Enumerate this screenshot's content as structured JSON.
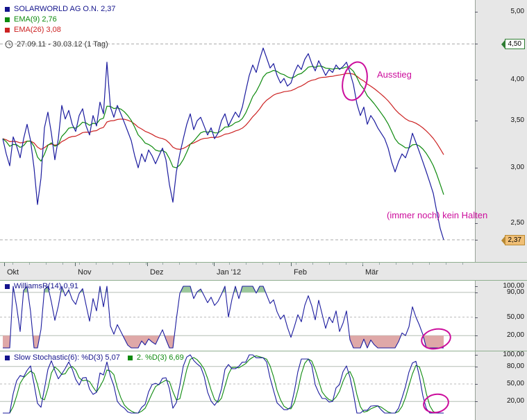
{
  "legend": {
    "symbol": "SOLARWORLD AG O.N. 2,37",
    "ema9": "EMA(9) 2,76",
    "ema26": "EMA(26) 3,08",
    "date_range": "27.09.11 - 30.03.12 (1 Tag)"
  },
  "annotations": {
    "ausstieg": "Ausstieg",
    "kein_halten": "(immer noch) kein Halten"
  },
  "x_axis": {
    "months": [
      "Okt",
      "Nov",
      "Dez",
      "Jan '12",
      "Feb",
      "Mär"
    ]
  },
  "price_axis": {
    "ticks": [
      {
        "label": "5,00",
        "value": 5.0,
        "style": "plain"
      },
      {
        "label": "4,50",
        "value": 4.5,
        "style": "badge-green"
      },
      {
        "label": "4,00",
        "value": 4.0,
        "style": "plain"
      },
      {
        "label": "3,50",
        "value": 3.5,
        "style": "plain"
      },
      {
        "label": "3,00",
        "value": 3.0,
        "style": "plain"
      },
      {
        "label": "2,50",
        "value": 2.5,
        "style": "plain"
      },
      {
        "label": "2,37",
        "value": 2.37,
        "style": "badge-amber"
      }
    ]
  },
  "williams_panel": {
    "title": "WilliamsR(14) 0,91",
    "ticks": [
      {
        "label": "100,00",
        "value": 100
      },
      {
        "label": "90,00",
        "value": 90
      },
      {
        "label": "50,00",
        "value": 50
      },
      {
        "label": "20,00",
        "value": 20
      }
    ]
  },
  "stoch_panel": {
    "title_main": "Slow Stochastic(6): %D(3) 5,07",
    "title_second": "2. %D(3) 6,69",
    "ticks": [
      {
        "label": "100,00",
        "value": 100
      },
      {
        "label": "80,00",
        "value": 80
      },
      {
        "label": "50,00",
        "value": 50
      },
      {
        "label": "20,00",
        "value": 20
      }
    ]
  },
  "colors": {
    "price": "#1b1b9e",
    "ema9": "#0e8a0e",
    "ema26": "#cc2222",
    "annotation": "#cc0d9c",
    "fill_overbought": "#9cc89c",
    "fill_oversold": "#dfa8a8",
    "grid": "#b4beb4",
    "grid_dashed": "#a8a8a8",
    "panel_bg": "#e7e7e7",
    "separator": "#8fae8f"
  },
  "chart_data": {
    "type": "line",
    "instrument": "SOLARWORLD AG O.N.",
    "last_price": 2.37,
    "period_label": "27.09.11 - 30.03.12 (1 Tag)",
    "interval": "1 Tag",
    "x_months": [
      "Okt",
      "Nov",
      "Dez",
      "Jan '12",
      "Feb",
      "Mär"
    ],
    "price_panel": {
      "y_scale": "log",
      "yticks": [
        5.0,
        4.5,
        4.0,
        3.5,
        3.0,
        2.5
      ],
      "marked_levels": [
        4.5,
        2.37
      ],
      "series": [
        {
          "name": "Kurs",
          "color": "price",
          "values": [
            3.3,
            3.14,
            3.02,
            3.32,
            3.22,
            3.1,
            3.3,
            3.46,
            3.28,
            3.0,
            2.66,
            2.9,
            3.42,
            3.6,
            3.36,
            3.08,
            3.3,
            3.68,
            3.52,
            3.62,
            3.46,
            3.38,
            3.56,
            3.64,
            3.44,
            3.34,
            3.56,
            3.44,
            3.72,
            3.58,
            4.24,
            3.66,
            3.54,
            3.68,
            3.58,
            3.48,
            3.38,
            3.28,
            3.12,
            3.0,
            3.14,
            3.06,
            3.18,
            3.12,
            3.04,
            3.12,
            3.2,
            3.08,
            2.84,
            2.68,
            2.96,
            3.14,
            3.3,
            3.46,
            3.58,
            3.4,
            3.5,
            3.54,
            3.44,
            3.34,
            3.42,
            3.3,
            3.36,
            3.5,
            3.58,
            3.44,
            3.52,
            3.6,
            3.54,
            3.66,
            3.86,
            4.06,
            4.2,
            4.1,
            4.28,
            4.44,
            4.3,
            4.16,
            4.22,
            4.06,
            3.96,
            4.02,
            3.92,
            3.96,
            4.1,
            4.2,
            4.14,
            4.28,
            4.36,
            4.22,
            4.12,
            4.26,
            4.16,
            4.06,
            4.14,
            4.1,
            4.2,
            4.14,
            4.18,
            4.24,
            4.1,
            3.94,
            3.7,
            3.56,
            3.66,
            3.46,
            3.56,
            3.5,
            3.42,
            3.36,
            3.3,
            3.2,
            3.06,
            2.96,
            3.06,
            3.14,
            3.1,
            3.2,
            3.36,
            3.26,
            3.16,
            3.06,
            2.96,
            2.86,
            2.76,
            2.6,
            2.46,
            2.37
          ]
        },
        {
          "name": "EMA(9)",
          "color": "ema9",
          "derived": "ema",
          "period": 9,
          "last": 2.76
        },
        {
          "name": "EMA(26)",
          "color": "ema26",
          "derived": "ema",
          "period": 26,
          "last": 3.08
        }
      ]
    },
    "williams_panel": {
      "indicator": "WilliamsR",
      "period": 14,
      "last": 0.91,
      "yticks": [
        100,
        90,
        50,
        20
      ],
      "shade_above": 90,
      "shade_below": 20,
      "derived_from": "Kurs"
    },
    "stoch_panel": {
      "indicator": "Slow Stochastic",
      "period": 6,
      "smoothing": 3,
      "last_d": 5.07,
      "last_d2": 6.69,
      "yticks": [
        100,
        80,
        50,
        20
      ],
      "derived_from": "Kurs"
    }
  }
}
